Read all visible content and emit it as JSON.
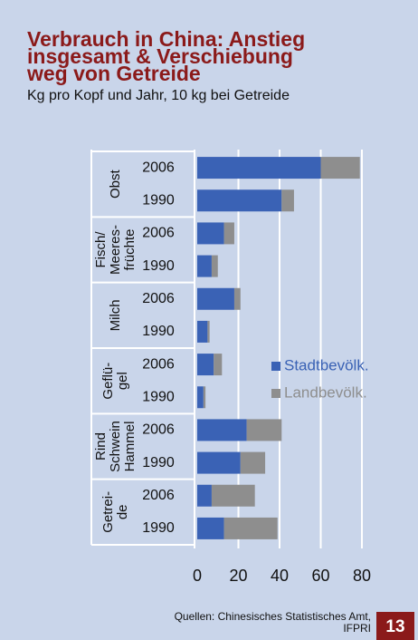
{
  "chart_data": {
    "type": "stacked-barh",
    "title": [
      "Verbrauch in China: Anstieg",
      "insgesamt & Verschiebung",
      "weg von Getreide"
    ],
    "subtitle": "Kg pro Kopf und Jahr, 10 kg bei Getreide",
    "groups": [
      [
        "Obst"
      ],
      [
        "Fisch/",
        "Meeres-",
        "früchte"
      ],
      [
        "Milch"
      ],
      [
        "Geflü-",
        "gel"
      ],
      [
        "Rind",
        "Schwein",
        "Hammel"
      ],
      [
        "Getrei-",
        "de"
      ]
    ],
    "categories": [
      "2006",
      "1990",
      "2006",
      "1990",
      "2006",
      "1990",
      "2006",
      "1990",
      "2006",
      "1990",
      "2006",
      "1990"
    ],
    "series": [
      {
        "name": "Stadtbevölk.",
        "color": "#3a62b5",
        "values": [
          60,
          41,
          13,
          7,
          18,
          5,
          8,
          3,
          24,
          21,
          7,
          13
        ]
      },
      {
        "name": "Landbevölk.",
        "color": "#8e8e8e",
        "values": [
          19,
          6,
          5,
          3,
          3,
          1,
          4,
          1,
          17,
          12,
          21,
          26
        ]
      }
    ],
    "xlim": [
      0,
      80
    ],
    "xticks": [
      0,
      20,
      40,
      60,
      80
    ],
    "grid": true,
    "source": [
      "Quellen: Chinesisches Statistisches Amt,",
      "IFPRI"
    ],
    "page_number": "13"
  }
}
